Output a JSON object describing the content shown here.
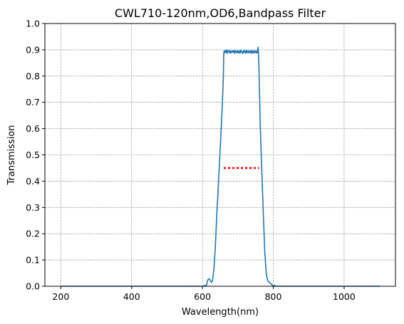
{
  "chart_data": {
    "type": "line",
    "title": "CWL710-120nm,OD6,Bandpass Filter",
    "xlabel": "Wavelength(nm)",
    "ylabel": "Transmission",
    "xlim": [
      155,
      1145
    ],
    "ylim": [
      0,
      1.0
    ],
    "xticks": [
      200,
      400,
      600,
      800,
      1000
    ],
    "yticks": [
      0.0,
      0.1,
      0.2,
      0.3,
      0.4,
      0.5,
      0.6,
      0.7,
      0.8,
      0.9,
      1.0
    ],
    "xtick_labels": [
      "200",
      "400",
      "600",
      "800",
      "1000"
    ],
    "ytick_labels": [
      "0.0",
      "0.1",
      "0.2",
      "0.3",
      "0.4",
      "0.5",
      "0.6",
      "0.7",
      "0.8",
      "0.9",
      "1.0"
    ],
    "grid": true,
    "series": [
      {
        "style": "solid",
        "color": "#1f77b4",
        "x": [
          200,
          400,
          600,
          612,
          614,
          617,
          620,
          622,
          625,
          628,
          632,
          636,
          640,
          645,
          650,
          655,
          658,
          659,
          660,
          661,
          662,
          664,
          666,
          668,
          670,
          672,
          674,
          676,
          678,
          680,
          682,
          684,
          686,
          688,
          690,
          692,
          694,
          696,
          698,
          700,
          702,
          704,
          706,
          708,
          710,
          712,
          714,
          716,
          718,
          720,
          722,
          724,
          726,
          728,
          730,
          732,
          734,
          736,
          738,
          740,
          742,
          744,
          746,
          748,
          750,
          752,
          754,
          756,
          757,
          758,
          759,
          760,
          761,
          762,
          763,
          765,
          768,
          772,
          776,
          780,
          784,
          788,
          792,
          796,
          800,
          803,
          806,
          810,
          1000,
          1100
        ],
        "y": [
          0.0,
          0.0,
          0.0,
          0.005,
          0.02,
          0.028,
          0.028,
          0.022,
          0.015,
          0.02,
          0.06,
          0.14,
          0.26,
          0.39,
          0.52,
          0.66,
          0.76,
          0.8,
          0.88,
          0.895,
          0.888,
          0.897,
          0.89,
          0.899,
          0.886,
          0.895,
          0.892,
          0.898,
          0.887,
          0.894,
          0.889,
          0.897,
          0.891,
          0.895,
          0.886,
          0.898,
          0.89,
          0.894,
          0.888,
          0.897,
          0.889,
          0.895,
          0.887,
          0.899,
          0.89,
          0.893,
          0.886,
          0.897,
          0.89,
          0.896,
          0.887,
          0.898,
          0.889,
          0.894,
          0.888,
          0.897,
          0.89,
          0.895,
          0.886,
          0.898,
          0.889,
          0.894,
          0.887,
          0.897,
          0.89,
          0.895,
          0.887,
          0.898,
          0.91,
          0.89,
          0.86,
          0.8,
          0.74,
          0.68,
          0.62,
          0.54,
          0.42,
          0.27,
          0.13,
          0.05,
          0.022,
          0.015,
          0.012,
          0.006,
          0.0,
          0.004,
          0.0,
          0.0,
          0.0,
          0.0
        ]
      },
      {
        "style": "dotted",
        "color": "#ff0000",
        "x": [
          660,
          760
        ],
        "y": [
          0.45,
          0.45
        ]
      }
    ]
  }
}
